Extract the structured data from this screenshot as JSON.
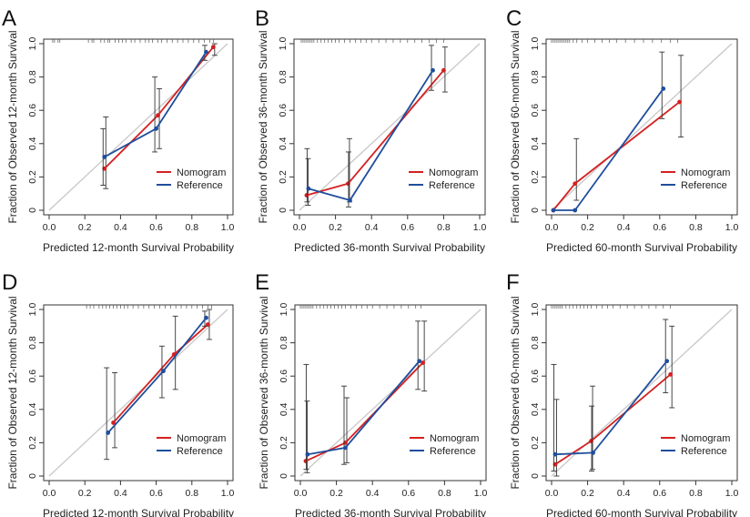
{
  "colors": {
    "nomogram": "#d42020",
    "reference": "#1f4e9c",
    "diagonal": "#c8c8c8",
    "axis": "#333333",
    "errorbar": "#333333"
  },
  "chart_data": [
    {
      "letter": "A",
      "type": "line",
      "xlabel": "Predicted 12-month Survival Probability",
      "ylabel": "Fraction of Observed 12-month Survival",
      "xlim": [
        0,
        1
      ],
      "ylim": [
        0,
        1
      ],
      "xticks": [
        "0.0",
        "0.2",
        "0.4",
        "0.6",
        "0.8",
        "1.0"
      ],
      "yticks": [
        "0",
        "0.2",
        "0.4",
        "0.6",
        "0.8",
        "1.0"
      ],
      "legend": [
        "Nomogram",
        "Reference"
      ],
      "series": [
        {
          "name": "Nomogram",
          "x": [
            0.31,
            0.61,
            0.92
          ],
          "y": [
            0.25,
            0.57,
            0.98
          ],
          "lo": [
            0.13,
            0.37,
            0.93
          ],
          "hi": [
            0.56,
            0.73,
            1.0
          ]
        },
        {
          "name": "Reference",
          "x": [
            0.31,
            0.6,
            0.88
          ],
          "y": [
            0.32,
            0.49,
            0.95
          ],
          "lo": [
            0.15,
            0.35,
            0.9
          ],
          "hi": [
            0.49,
            0.8,
            0.99
          ]
        }
      ],
      "rug": [
        0.02,
        0.03,
        0.05,
        0.06,
        0.22,
        0.24,
        0.25,
        0.29,
        0.31,
        0.33,
        0.34,
        0.37,
        0.39,
        0.41,
        0.43,
        0.46,
        0.48,
        0.51,
        0.54,
        0.56,
        0.58,
        0.61,
        0.63,
        0.66,
        0.69,
        0.72,
        0.75,
        0.78,
        0.81,
        0.84,
        0.87,
        0.9,
        0.92
      ]
    },
    {
      "letter": "B",
      "type": "line",
      "xlabel": "Predicted 36-month Survival Probability",
      "ylabel": "Fraction of Observed 36-month Survival",
      "xlim": [
        0,
        1
      ],
      "ylim": [
        0,
        1
      ],
      "xticks": [
        "0.0",
        "0.2",
        "0.4",
        "0.6",
        "0.8",
        "1.0"
      ],
      "yticks": [
        "0",
        "0.2",
        "0.4",
        "0.6",
        "0.8",
        "1.0"
      ],
      "legend": [
        "Nomogram",
        "Reference"
      ],
      "series": [
        {
          "name": "Nomogram",
          "x": [
            0.04,
            0.27,
            0.8
          ],
          "y": [
            0.09,
            0.16,
            0.84
          ],
          "lo": [
            0.03,
            0.05,
            0.71
          ],
          "hi": [
            0.31,
            0.43,
            0.98
          ]
        },
        {
          "name": "Reference",
          "x": [
            0.05,
            0.28,
            0.74
          ],
          "y": [
            0.13,
            0.06,
            0.84
          ],
          "lo": [
            0.05,
            0.02,
            0.72
          ],
          "hi": [
            0.37,
            0.35,
            0.99
          ]
        }
      ],
      "rug": [
        0.01,
        0.02,
        0.03,
        0.04,
        0.05,
        0.06,
        0.07,
        0.08,
        0.1,
        0.12,
        0.14,
        0.16,
        0.18,
        0.2,
        0.22,
        0.25,
        0.28,
        0.31,
        0.34,
        0.37,
        0.4,
        0.44,
        0.48,
        0.52,
        0.56,
        0.6,
        0.64,
        0.68,
        0.72,
        0.76,
        0.8
      ]
    },
    {
      "letter": "C",
      "type": "line",
      "xlabel": "Predicted 60-month Survival Probability",
      "ylabel": "Fraction of Observed 60-month Survival",
      "xlim": [
        0,
        1
      ],
      "ylim": [
        0,
        1
      ],
      "xticks": [
        "0.0",
        "0.2",
        "0.4",
        "0.6",
        "0.8",
        "1.0"
      ],
      "yticks": [
        "0",
        "0.2",
        "0.4",
        "0.6",
        "0.8",
        "1.0"
      ],
      "legend": [
        "Nomogram",
        "Reference"
      ],
      "series": [
        {
          "name": "Nomogram",
          "x": [
            0.01,
            0.13,
            0.71
          ],
          "y": [
            0.0,
            0.16,
            0.65
          ],
          "lo": [
            0.0,
            0.06,
            0.44
          ],
          "hi": [
            0.0,
            0.43,
            0.93
          ]
        },
        {
          "name": "Reference",
          "x": [
            0.01,
            0.13,
            0.62
          ],
          "y": [
            0.0,
            0.0,
            0.73
          ],
          "lo": [
            0.0,
            0.0,
            0.55
          ],
          "hi": [
            0.0,
            0.0,
            0.95
          ]
        }
      ],
      "rug": [
        0.0,
        0.01,
        0.02,
        0.03,
        0.04,
        0.05,
        0.06,
        0.07,
        0.08,
        0.09,
        0.1,
        0.12,
        0.14,
        0.17,
        0.2,
        0.24,
        0.28,
        0.32,
        0.36,
        0.41,
        0.46,
        0.51,
        0.56,
        0.61,
        0.66,
        0.7
      ]
    },
    {
      "letter": "D",
      "type": "line",
      "xlabel": "Predicted 12-month Survival Probability",
      "ylabel": "Fraction of Observed 12-month Survival",
      "xlim": [
        0,
        1
      ],
      "ylim": [
        0,
        1
      ],
      "xticks": [
        "0.0",
        "0.2",
        "0.4",
        "0.6",
        "0.8",
        "1.0"
      ],
      "yticks": [
        "0",
        "0.2",
        "0.4",
        "0.6",
        "0.8",
        "1.0"
      ],
      "legend": [
        "Nomogram",
        "Reference"
      ],
      "series": [
        {
          "name": "Nomogram",
          "x": [
            0.36,
            0.7,
            0.89
          ],
          "y": [
            0.32,
            0.73,
            0.91
          ],
          "lo": [
            0.17,
            0.52,
            0.82
          ],
          "hi": [
            0.62,
            0.96,
            1.0
          ]
        },
        {
          "name": "Reference",
          "x": [
            0.33,
            0.64,
            0.88
          ],
          "y": [
            0.26,
            0.63,
            0.95
          ],
          "lo": [
            0.1,
            0.47,
            0.9
          ],
          "hi": [
            0.65,
            0.78,
            0.99
          ]
        }
      ],
      "rug": [
        0.21,
        0.23,
        0.25,
        0.28,
        0.3,
        0.32,
        0.34,
        0.36,
        0.38,
        0.4,
        0.42,
        0.44,
        0.47,
        0.5,
        0.53,
        0.56,
        0.59,
        0.62,
        0.65,
        0.68,
        0.71,
        0.74,
        0.77,
        0.8,
        0.83,
        0.86,
        0.89,
        0.91
      ]
    },
    {
      "letter": "E",
      "type": "line",
      "xlabel": "Predicted 36-month Survival Probability",
      "ylabel": "Fraction of Observed 36-month Survival",
      "xlim": [
        0,
        1
      ],
      "ylim": [
        0,
        1
      ],
      "xticks": [
        "0.0",
        "0.2",
        "0.4",
        "0.6",
        "0.8",
        "1.0"
      ],
      "yticks": [
        "0",
        "0.2",
        "0.4",
        "0.6",
        "0.8",
        "1.0"
      ],
      "legend": [
        "Nomogram",
        "Reference"
      ],
      "series": [
        {
          "name": "Nomogram",
          "x": [
            0.03,
            0.25,
            0.68
          ],
          "y": [
            0.09,
            0.2,
            0.68
          ],
          "lo": [
            0.02,
            0.08,
            0.51
          ],
          "hi": [
            0.45,
            0.47,
            0.93
          ]
        },
        {
          "name": "Reference",
          "x": [
            0.04,
            0.25,
            0.66
          ],
          "y": [
            0.13,
            0.17,
            0.69
          ],
          "lo": [
            0.04,
            0.07,
            0.52
          ],
          "hi": [
            0.67,
            0.54,
            0.93
          ]
        }
      ],
      "rug": [
        0.0,
        0.01,
        0.02,
        0.03,
        0.04,
        0.05,
        0.06,
        0.07,
        0.09,
        0.11,
        0.13,
        0.15,
        0.17,
        0.19,
        0.21,
        0.23,
        0.25,
        0.28,
        0.31,
        0.34,
        0.37,
        0.4,
        0.44,
        0.48,
        0.52,
        0.56,
        0.6,
        0.64,
        0.67
      ]
    },
    {
      "letter": "F",
      "type": "line",
      "xlabel": "Predicted 60-month Survival Probability",
      "ylabel": "Fraction of Observed 60-month Survival",
      "xlim": [
        0,
        1
      ],
      "ylim": [
        0,
        1
      ],
      "xticks": [
        "0.0",
        "0.2",
        "0.4",
        "0.6",
        "0.8",
        "1.0"
      ],
      "yticks": [
        "0",
        "0.2",
        "0.4",
        "0.6",
        "0.8",
        "1.0"
      ],
      "legend": [
        "Nomogram",
        "Reference"
      ],
      "series": [
        {
          "name": "Nomogram",
          "x": [
            0.02,
            0.22,
            0.66
          ],
          "y": [
            0.07,
            0.21,
            0.61
          ],
          "lo": [
            0.0,
            0.04,
            0.41
          ],
          "hi": [
            0.46,
            0.54,
            0.9
          ]
        },
        {
          "name": "Reference",
          "x": [
            0.02,
            0.23,
            0.64
          ],
          "y": [
            0.13,
            0.14,
            0.69
          ],
          "lo": [
            0.03,
            0.03,
            0.5
          ],
          "hi": [
            0.67,
            0.42,
            0.94
          ]
        }
      ],
      "rug": [
        0.0,
        0.01,
        0.02,
        0.03,
        0.04,
        0.05,
        0.06,
        0.08,
        0.1,
        0.12,
        0.14,
        0.16,
        0.18,
        0.2,
        0.22,
        0.25,
        0.28,
        0.31,
        0.34,
        0.38,
        0.42,
        0.46,
        0.5,
        0.54,
        0.58,
        0.62,
        0.66
      ]
    }
  ]
}
